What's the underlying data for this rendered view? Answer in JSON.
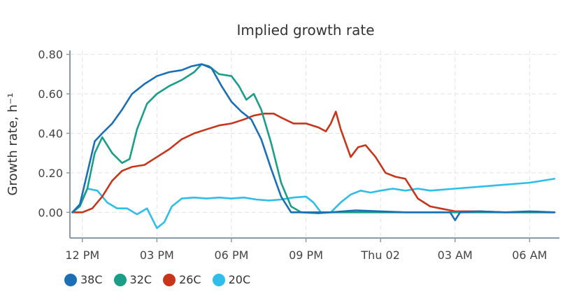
{
  "chart_data": {
    "type": "line",
    "title": "Implied growth rate",
    "ylabel": "Growth rate, h⁻¹",
    "xlabel": "",
    "ylim": [
      -0.13,
      0.82
    ],
    "xlim": [
      11.5,
      31.2
    ],
    "x_unit": "hours from midnight of day 1",
    "y_ticks": [
      "0.00",
      "0.20",
      "0.40",
      "0.60",
      "0.80"
    ],
    "y_tick_values": [
      0.0,
      0.2,
      0.4,
      0.6,
      0.8
    ],
    "x_ticks": [
      "12 PM",
      "03 PM",
      "06 PM",
      "09 PM",
      "Thu 02",
      "03 AM",
      "06 AM"
    ],
    "x_tick_values": [
      12,
      15,
      18,
      21,
      24,
      27,
      30
    ],
    "grid": true,
    "legend_position": "bottom-left",
    "series": [
      {
        "name": "38C",
        "color": "#1a6fb5",
        "x": [
          11.6,
          11.9,
          12.2,
          12.5,
          12.8,
          13.2,
          13.6,
          14.0,
          14.5,
          15.0,
          15.5,
          16.0,
          16.4,
          16.8,
          17.2,
          17.6,
          18.0,
          18.4,
          18.8,
          19.2,
          19.6,
          20.0,
          20.4,
          20.8,
          21.5,
          22.0,
          23.0,
          24.0,
          25.0,
          26.0,
          26.8,
          27.0,
          27.2,
          28.0,
          29.0,
          30.0,
          31.0
        ],
        "y": [
          0.0,
          0.04,
          0.2,
          0.36,
          0.4,
          0.45,
          0.52,
          0.6,
          0.65,
          0.69,
          0.71,
          0.72,
          0.74,
          0.75,
          0.73,
          0.64,
          0.56,
          0.51,
          0.47,
          0.37,
          0.22,
          0.08,
          0.0,
          0.0,
          0.0,
          0.0,
          0.01,
          0.005,
          0.0,
          0.0,
          0.0,
          -0.04,
          0.0,
          0.005,
          0.0,
          0.005,
          0.0
        ]
      },
      {
        "name": "32C",
        "color": "#1a9e87",
        "x": [
          11.6,
          11.9,
          12.2,
          12.5,
          12.8,
          13.2,
          13.6,
          13.9,
          14.2,
          14.6,
          15.0,
          15.5,
          16.0,
          16.5,
          16.8,
          17.1,
          17.5,
          18.0,
          18.3,
          18.6,
          18.9,
          19.2,
          19.6,
          20.0,
          20.4,
          20.8,
          21.5,
          22.0,
          23.0,
          24.0,
          25.0,
          26.0,
          27.0,
          28.0,
          29.0,
          30.0,
          31.0
        ],
        "y": [
          0.0,
          0.03,
          0.12,
          0.3,
          0.38,
          0.3,
          0.25,
          0.27,
          0.42,
          0.55,
          0.6,
          0.64,
          0.67,
          0.71,
          0.75,
          0.74,
          0.7,
          0.69,
          0.64,
          0.57,
          0.6,
          0.52,
          0.35,
          0.15,
          0.03,
          0.0,
          -0.005,
          0.0,
          0.0,
          0.0,
          0.0,
          0.0,
          0.0,
          0.0,
          0.0,
          0.0,
          0.0
        ]
      },
      {
        "name": "26C",
        "color": "#c8351b",
        "x": [
          11.6,
          12.0,
          12.4,
          12.8,
          13.2,
          13.6,
          14.0,
          14.5,
          15.0,
          15.5,
          16.0,
          16.5,
          17.0,
          17.5,
          18.0,
          18.5,
          18.9,
          19.3,
          19.7,
          20.0,
          20.5,
          21.0,
          21.5,
          21.8,
          22.0,
          22.2,
          22.4,
          22.8,
          23.1,
          23.4,
          23.8,
          24.2,
          24.6,
          25.0,
          25.5,
          26.0,
          27.0,
          28.0,
          29.0,
          30.0,
          31.0
        ],
        "y": [
          0.0,
          0.0,
          0.02,
          0.08,
          0.16,
          0.21,
          0.23,
          0.24,
          0.28,
          0.32,
          0.37,
          0.4,
          0.42,
          0.44,
          0.45,
          0.47,
          0.49,
          0.5,
          0.5,
          0.48,
          0.45,
          0.45,
          0.43,
          0.41,
          0.45,
          0.51,
          0.42,
          0.28,
          0.33,
          0.34,
          0.28,
          0.2,
          0.18,
          0.17,
          0.07,
          0.03,
          0.005,
          0.005,
          0.0,
          0.0,
          0.0
        ]
      },
      {
        "name": "20C",
        "color": "#2fbdea",
        "x": [
          11.6,
          11.9,
          12.2,
          12.6,
          13.0,
          13.4,
          13.8,
          14.2,
          14.6,
          15.0,
          15.3,
          15.6,
          16.0,
          16.5,
          17.0,
          17.5,
          18.0,
          18.5,
          19.0,
          19.5,
          20.0,
          20.5,
          21.0,
          21.3,
          21.6,
          22.0,
          22.4,
          22.8,
          23.2,
          23.6,
          24.0,
          24.5,
          25.0,
          25.5,
          26.0,
          27.0,
          28.0,
          29.0,
          30.0,
          31.0
        ],
        "y": [
          0.0,
          0.04,
          0.12,
          0.11,
          0.05,
          0.02,
          0.02,
          -0.01,
          0.02,
          -0.08,
          -0.05,
          0.03,
          0.07,
          0.075,
          0.07,
          0.075,
          0.07,
          0.075,
          0.065,
          0.06,
          0.065,
          0.075,
          0.08,
          0.05,
          0.0,
          0.0,
          0.05,
          0.09,
          0.11,
          0.1,
          0.11,
          0.12,
          0.11,
          0.12,
          0.11,
          0.12,
          0.13,
          0.14,
          0.15,
          0.17
        ]
      }
    ]
  }
}
